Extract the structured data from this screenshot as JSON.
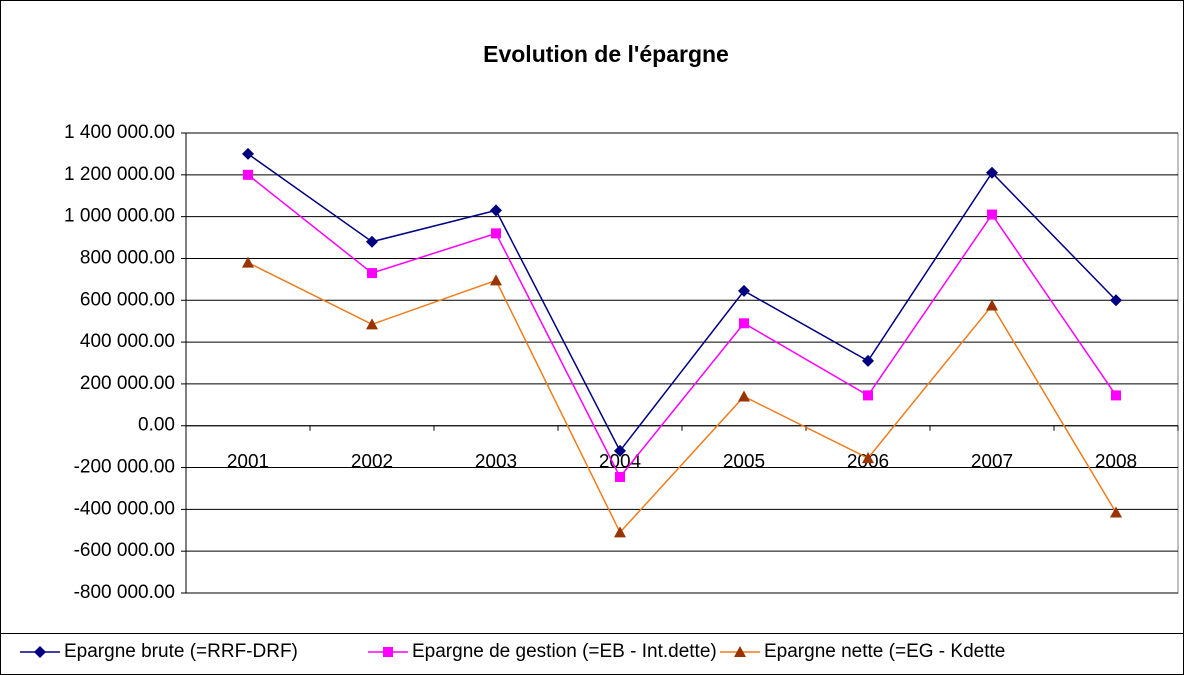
{
  "chart_data": {
    "type": "line",
    "title": "Evolution de l'épargne",
    "categories": [
      "2001",
      "2002",
      "2003",
      "2004",
      "2005",
      "2006",
      "2007",
      "2008"
    ],
    "series": [
      {
        "name": "Epargne brute (=RRF-DRF)",
        "color": "#000080",
        "marker": "diamond",
        "marker_color": "#000080",
        "values": [
          1300000,
          880000,
          1030000,
          -120000,
          645000,
          310000,
          1210000,
          600000
        ]
      },
      {
        "name": "Epargne de gestion (=EB - Int.dette)",
        "color": "#ff00ff",
        "marker": "square",
        "marker_color": "#ff00ff",
        "values": [
          1200000,
          730000,
          920000,
          -245000,
          490000,
          145000,
          1010000,
          145000
        ]
      },
      {
        "name": "Epargne nette (=EG - Kdette",
        "color": "#f07d1e",
        "marker": "triangle",
        "marker_color": "#993300",
        "values": [
          780000,
          485000,
          695000,
          -510000,
          140000,
          -155000,
          575000,
          -415000
        ]
      }
    ],
    "ylim": [
      -800000,
      1400000
    ],
    "yticks": [
      {
        "value": -800000,
        "label": "-800 000.00"
      },
      {
        "value": -600000,
        "label": "-600 000.00"
      },
      {
        "value": -400000,
        "label": "-400 000.00"
      },
      {
        "value": -200000,
        "label": "-200 000.00"
      },
      {
        "value": 0,
        "label": "0.00"
      },
      {
        "value": 200000,
        "label": "200 000.00"
      },
      {
        "value": 400000,
        "label": "400 000.00"
      },
      {
        "value": 600000,
        "label": "600 000.00"
      },
      {
        "value": 800000,
        "label": "800 000.00"
      },
      {
        "value": 1000000,
        "label": "1 000 000.00"
      },
      {
        "value": 1200000,
        "label": "1 200 000.00"
      },
      {
        "value": 1400000,
        "label": "1 400 000.00"
      }
    ],
    "grid": true,
    "legend": "bottom"
  }
}
